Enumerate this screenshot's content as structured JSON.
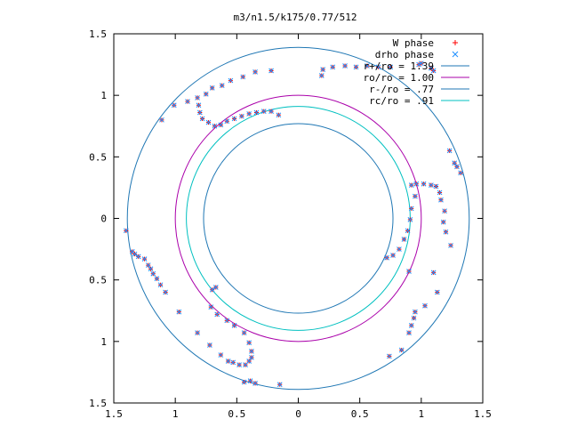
{
  "chart_data": {
    "type": "scatter",
    "title": "m3/n1.5/k175/0.77/512",
    "xlim": [
      -1.5,
      1.5
    ],
    "ylim": [
      -1.5,
      1.5
    ],
    "xticks": [
      -1.5,
      -1,
      -0.5,
      0,
      0.5,
      1,
      1.5
    ],
    "yticks": [
      -1.5,
      -1,
      -0.5,
      0,
      0.5,
      1,
      1.5
    ],
    "xtick_labels": [
      "1.5",
      "1",
      "0.5",
      "0",
      "0.5",
      "1",
      "1.5"
    ],
    "ytick_labels": [
      "1.5",
      "1",
      "0.5",
      "0",
      "0.5",
      "1",
      "1.5"
    ],
    "grid": false,
    "legend_position": "top-right",
    "circles": [
      {
        "label": "r+/ro = 1.39",
        "r": 1.39,
        "color": "#1f77b4"
      },
      {
        "label": "ro/ro = 1.00",
        "r": 1.0,
        "color": "#aa00aa"
      },
      {
        "label": "r-/ro = .77",
        "r": 0.77,
        "color": "#1f77b4"
      },
      {
        "label": "rc/ro = .91",
        "r": 0.91,
        "color": "#00c0c0"
      }
    ],
    "series": [
      {
        "name": "W phase",
        "marker": "plus",
        "color": "#ff0000",
        "points": [
          [
            -1.4,
            -0.1
          ],
          [
            -1.35,
            -0.27
          ],
          [
            -1.33,
            -0.29
          ],
          [
            -1.3,
            -0.31
          ],
          [
            -1.25,
            -0.33
          ],
          [
            -1.22,
            -0.38
          ],
          [
            -1.2,
            -0.41
          ],
          [
            -1.18,
            -0.45
          ],
          [
            -1.15,
            -0.49
          ],
          [
            -1.12,
            -0.54
          ],
          [
            -1.08,
            -0.6
          ],
          [
            -0.97,
            -0.76
          ],
          [
            -0.82,
            -0.93
          ],
          [
            -0.72,
            -1.03
          ],
          [
            -0.63,
            -1.11
          ],
          [
            -0.57,
            -1.16
          ],
          [
            -0.53,
            -1.17
          ],
          [
            -0.48,
            -1.19
          ],
          [
            -0.43,
            -1.19
          ],
          [
            -0.4,
            -1.16
          ],
          [
            -0.38,
            -1.13
          ],
          [
            -0.38,
            -1.08
          ],
          [
            -0.4,
            -1.01
          ],
          [
            -0.44,
            -0.93
          ],
          [
            -0.52,
            -0.87
          ],
          [
            -0.58,
            -0.83
          ],
          [
            -0.66,
            -0.78
          ],
          [
            -0.71,
            -0.72
          ],
          [
            -0.7,
            -0.58
          ],
          [
            -0.67,
            -0.56
          ],
          [
            -0.44,
            -1.33
          ],
          [
            -0.39,
            -1.32
          ],
          [
            -0.35,
            -1.34
          ],
          [
            -0.15,
            -1.35
          ],
          [
            1.1,
            1.2
          ],
          [
            1.08,
            1.22
          ],
          [
            1.0,
            1.26
          ],
          [
            0.98,
            1.25
          ],
          [
            0.75,
            1.23
          ],
          [
            0.65,
            1.23
          ],
          [
            0.56,
            1.24
          ],
          [
            0.47,
            1.23
          ],
          [
            0.38,
            1.24
          ],
          [
            0.28,
            1.23
          ],
          [
            0.2,
            1.21
          ],
          [
            0.19,
            1.16
          ],
          [
            -0.22,
            1.2
          ],
          [
            -0.35,
            1.19
          ],
          [
            -0.45,
            1.15
          ],
          [
            -0.55,
            1.12
          ],
          [
            -0.62,
            1.08
          ],
          [
            -0.7,
            1.06
          ],
          [
            -0.75,
            1.01
          ],
          [
            -0.82,
            0.98
          ],
          [
            -0.9,
            0.95
          ],
          [
            -1.01,
            0.92
          ],
          [
            -1.11,
            0.8
          ],
          [
            -0.81,
            0.92
          ],
          [
            -0.8,
            0.86
          ],
          [
            -0.78,
            0.81
          ],
          [
            -0.73,
            0.78
          ],
          [
            -0.68,
            0.75
          ],
          [
            -0.63,
            0.76
          ],
          [
            -0.58,
            0.79
          ],
          [
            -0.52,
            0.81
          ],
          [
            -0.46,
            0.83
          ],
          [
            -0.4,
            0.85
          ],
          [
            -0.34,
            0.86
          ],
          [
            -0.28,
            0.87
          ],
          [
            -0.22,
            0.87
          ],
          [
            -0.16,
            0.84
          ],
          [
            0.92,
            0.27
          ],
          [
            0.96,
            0.28
          ],
          [
            1.02,
            0.28
          ],
          [
            1.08,
            0.27
          ],
          [
            1.12,
            0.26
          ],
          [
            1.15,
            0.21
          ],
          [
            1.16,
            0.15
          ],
          [
            1.19,
            0.06
          ],
          [
            1.18,
            -0.03
          ],
          [
            1.2,
            -0.11
          ],
          [
            1.24,
            -0.22
          ],
          [
            1.23,
            0.55
          ],
          [
            1.27,
            0.45
          ],
          [
            1.29,
            0.42
          ],
          [
            1.32,
            0.37
          ],
          [
            0.95,
            0.18
          ],
          [
            0.92,
            0.08
          ],
          [
            0.91,
            -0.01
          ],
          [
            0.89,
            -0.1
          ],
          [
            0.86,
            -0.17
          ],
          [
            0.82,
            -0.25
          ],
          [
            0.77,
            -0.3
          ],
          [
            0.72,
            -0.32
          ],
          [
            0.9,
            -0.43
          ],
          [
            1.1,
            -0.44
          ],
          [
            1.13,
            -0.6
          ],
          [
            1.03,
            -0.71
          ],
          [
            0.95,
            -0.76
          ],
          [
            0.94,
            -0.81
          ],
          [
            0.92,
            -0.87
          ],
          [
            0.9,
            -0.93
          ],
          [
            0.84,
            -1.07
          ],
          [
            0.74,
            -1.12
          ]
        ]
      },
      {
        "name": "drho phase",
        "marker": "x",
        "color": "#1f8fff",
        "points": [
          [
            -1.4,
            -0.1
          ],
          [
            -1.35,
            -0.27
          ],
          [
            -1.33,
            -0.29
          ],
          [
            -1.3,
            -0.31
          ],
          [
            -1.25,
            -0.33
          ],
          [
            -1.22,
            -0.38
          ],
          [
            -1.2,
            -0.41
          ],
          [
            -1.18,
            -0.45
          ],
          [
            -1.15,
            -0.49
          ],
          [
            -1.12,
            -0.54
          ],
          [
            -1.08,
            -0.6
          ],
          [
            -0.97,
            -0.76
          ],
          [
            -0.82,
            -0.93
          ],
          [
            -0.72,
            -1.03
          ],
          [
            -0.63,
            -1.11
          ],
          [
            -0.57,
            -1.16
          ],
          [
            -0.53,
            -1.17
          ],
          [
            -0.48,
            -1.19
          ],
          [
            -0.43,
            -1.19
          ],
          [
            -0.4,
            -1.16
          ],
          [
            -0.38,
            -1.13
          ],
          [
            -0.38,
            -1.08
          ],
          [
            -0.4,
            -1.01
          ],
          [
            -0.44,
            -0.93
          ],
          [
            -0.52,
            -0.87
          ],
          [
            -0.58,
            -0.83
          ],
          [
            -0.66,
            -0.78
          ],
          [
            -0.71,
            -0.72
          ],
          [
            -0.7,
            -0.58
          ],
          [
            -0.67,
            -0.56
          ],
          [
            -0.44,
            -1.33
          ],
          [
            -0.39,
            -1.32
          ],
          [
            -0.35,
            -1.34
          ],
          [
            -0.15,
            -1.35
          ],
          [
            1.1,
            1.2
          ],
          [
            1.08,
            1.22
          ],
          [
            1.0,
            1.26
          ],
          [
            0.98,
            1.25
          ],
          [
            0.75,
            1.23
          ],
          [
            0.65,
            1.23
          ],
          [
            0.56,
            1.24
          ],
          [
            0.47,
            1.23
          ],
          [
            0.38,
            1.24
          ],
          [
            0.28,
            1.23
          ],
          [
            0.2,
            1.21
          ],
          [
            0.19,
            1.16
          ],
          [
            -0.22,
            1.2
          ],
          [
            -0.35,
            1.19
          ],
          [
            -0.45,
            1.15
          ],
          [
            -0.55,
            1.12
          ],
          [
            -0.62,
            1.08
          ],
          [
            -0.7,
            1.06
          ],
          [
            -0.75,
            1.01
          ],
          [
            -0.82,
            0.98
          ],
          [
            -0.9,
            0.95
          ],
          [
            -1.01,
            0.92
          ],
          [
            -1.11,
            0.8
          ],
          [
            -0.81,
            0.92
          ],
          [
            -0.8,
            0.86
          ],
          [
            -0.78,
            0.81
          ],
          [
            -0.73,
            0.78
          ],
          [
            -0.68,
            0.75
          ],
          [
            -0.63,
            0.76
          ],
          [
            -0.58,
            0.79
          ],
          [
            -0.52,
            0.81
          ],
          [
            -0.46,
            0.83
          ],
          [
            -0.4,
            0.85
          ],
          [
            -0.34,
            0.86
          ],
          [
            -0.28,
            0.87
          ],
          [
            -0.22,
            0.87
          ],
          [
            -0.16,
            0.84
          ],
          [
            0.92,
            0.27
          ],
          [
            0.96,
            0.28
          ],
          [
            1.02,
            0.28
          ],
          [
            1.08,
            0.27
          ],
          [
            1.12,
            0.26
          ],
          [
            1.15,
            0.21
          ],
          [
            1.16,
            0.15
          ],
          [
            1.19,
            0.06
          ],
          [
            1.18,
            -0.03
          ],
          [
            1.2,
            -0.11
          ],
          [
            1.24,
            -0.22
          ],
          [
            1.23,
            0.55
          ],
          [
            1.27,
            0.45
          ],
          [
            1.29,
            0.42
          ],
          [
            1.32,
            0.37
          ],
          [
            0.95,
            0.18
          ],
          [
            0.92,
            0.08
          ],
          [
            0.91,
            -0.01
          ],
          [
            0.89,
            -0.1
          ],
          [
            0.86,
            -0.17
          ],
          [
            0.82,
            -0.25
          ],
          [
            0.77,
            -0.3
          ],
          [
            0.72,
            -0.32
          ],
          [
            0.9,
            -0.43
          ],
          [
            1.1,
            -0.44
          ],
          [
            1.13,
            -0.6
          ],
          [
            1.03,
            -0.71
          ],
          [
            0.95,
            -0.76
          ],
          [
            0.94,
            -0.81
          ],
          [
            0.92,
            -0.87
          ],
          [
            0.9,
            -0.93
          ],
          [
            0.84,
            -1.07
          ],
          [
            0.74,
            -1.12
          ]
        ]
      }
    ]
  }
}
